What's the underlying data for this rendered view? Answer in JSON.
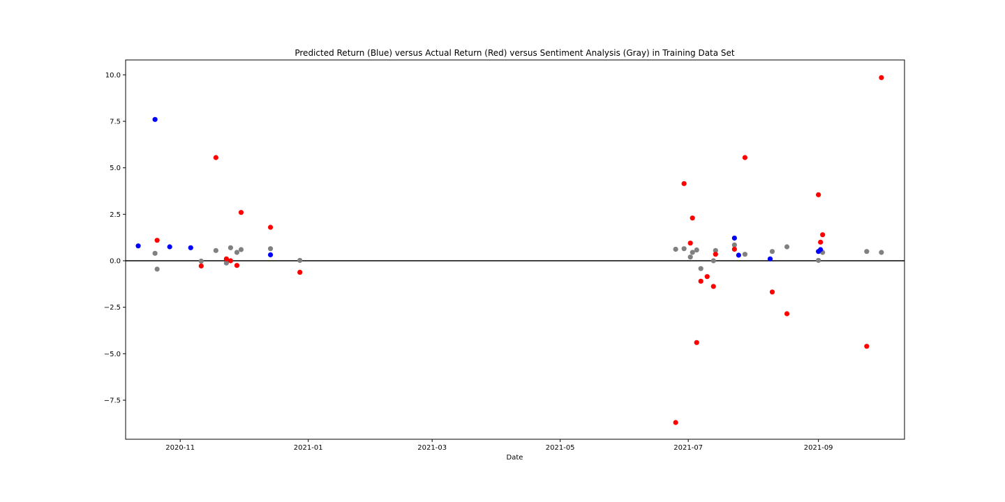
{
  "chart_data": {
    "type": "scatter",
    "title": "Predicted Return (Blue) versus Actual Return (Red) versus Sentiment Analysis (Gray) in Training Data Set",
    "xlabel": "Date",
    "ylabel": "",
    "xlim": [
      "2020-10-06",
      "2021-10-12"
    ],
    "ylim": [
      -9.6,
      10.8
    ],
    "x_ticks": [
      "2020-11",
      "2021-01",
      "2021-03",
      "2021-05",
      "2021-07",
      "2021-09"
    ],
    "x_tick_dates": [
      "2020-11-01",
      "2021-01-01",
      "2021-03-01",
      "2021-05-01",
      "2021-07-01",
      "2021-09-01"
    ],
    "y_ticks": [
      10.0,
      7.5,
      5.0,
      2.5,
      0.0,
      -2.5,
      -5.0,
      -7.5
    ],
    "y_tick_labels": [
      "10.0",
      "7.5",
      "5.0",
      "2.5",
      "0.0",
      "−2.5",
      "−5.0",
      "−7.5"
    ],
    "reference_line": 0,
    "grid": false,
    "legend": "none",
    "colors": {
      "predicted": "#0000ff",
      "actual": "#ff0000",
      "sentiment": "#808080",
      "axes": "#000000"
    },
    "series": [
      {
        "color": "#808080",
        "points": [
          {
            "x": "2020-10-20",
            "y": 0.4
          },
          {
            "x": "2020-10-21",
            "y": -0.45
          },
          {
            "x": "2020-11-11",
            "y": -0.02
          },
          {
            "x": "2020-11-18",
            "y": 0.55
          },
          {
            "x": "2020-11-23",
            "y": -0.12
          },
          {
            "x": "2020-11-25",
            "y": 0.7
          },
          {
            "x": "2020-11-28",
            "y": 0.45
          },
          {
            "x": "2020-11-30",
            "y": 0.6
          },
          {
            "x": "2020-12-14",
            "y": 0.65
          },
          {
            "x": "2020-12-28",
            "y": 0.02
          },
          {
            "x": "2021-06-25",
            "y": 0.62
          },
          {
            "x": "2021-06-29",
            "y": 0.65
          },
          {
            "x": "2021-07-02",
            "y": 0.2
          },
          {
            "x": "2021-07-03",
            "y": 0.45
          },
          {
            "x": "2021-07-05",
            "y": 0.58
          },
          {
            "x": "2021-07-07",
            "y": -0.42
          },
          {
            "x": "2021-07-13",
            "y": 0.0
          },
          {
            "x": "2021-07-14",
            "y": 0.55
          },
          {
            "x": "2021-07-23",
            "y": 0.85
          },
          {
            "x": "2021-07-28",
            "y": 0.35
          },
          {
            "x": "2021-08-10",
            "y": 0.5
          },
          {
            "x": "2021-08-17",
            "y": 0.75
          },
          {
            "x": "2021-09-01",
            "y": 0.02
          },
          {
            "x": "2021-09-03",
            "y": 0.45
          },
          {
            "x": "2021-09-24",
            "y": 0.5
          },
          {
            "x": "2021-10-01",
            "y": 0.45
          }
        ]
      },
      {
        "color": "#ff0000",
        "points": [
          {
            "x": "2020-10-21",
            "y": 1.1
          },
          {
            "x": "2020-11-11",
            "y": -0.28
          },
          {
            "x": "2020-11-18",
            "y": 5.55
          },
          {
            "x": "2020-11-23",
            "y": 0.1
          },
          {
            "x": "2020-11-25",
            "y": 0.0
          },
          {
            "x": "2020-11-28",
            "y": -0.25
          },
          {
            "x": "2020-11-30",
            "y": 2.6
          },
          {
            "x": "2020-12-14",
            "y": 1.8
          },
          {
            "x": "2020-12-28",
            "y": -0.62
          },
          {
            "x": "2021-06-25",
            "y": -8.7
          },
          {
            "x": "2021-06-29",
            "y": 4.15
          },
          {
            "x": "2021-07-02",
            "y": 0.95
          },
          {
            "x": "2021-07-03",
            "y": 2.3
          },
          {
            "x": "2021-07-05",
            "y": -4.4
          },
          {
            "x": "2021-07-07",
            "y": -1.1
          },
          {
            "x": "2021-07-10",
            "y": -0.85
          },
          {
            "x": "2021-07-13",
            "y": -1.38
          },
          {
            "x": "2021-07-14",
            "y": 0.35
          },
          {
            "x": "2021-07-23",
            "y": 0.62
          },
          {
            "x": "2021-07-28",
            "y": 5.55
          },
          {
            "x": "2021-08-10",
            "y": -1.68
          },
          {
            "x": "2021-08-17",
            "y": -2.85
          },
          {
            "x": "2021-09-01",
            "y": 3.55
          },
          {
            "x": "2021-09-02",
            "y": 1.0
          },
          {
            "x": "2021-09-03",
            "y": 1.4
          },
          {
            "x": "2021-09-24",
            "y": -4.6
          },
          {
            "x": "2021-10-01",
            "y": 9.85
          }
        ]
      },
      {
        "color": "#0000ff",
        "points": [
          {
            "x": "2020-10-12",
            "y": 0.8
          },
          {
            "x": "2020-10-20",
            "y": 7.6
          },
          {
            "x": "2020-10-27",
            "y": 0.75
          },
          {
            "x": "2020-11-06",
            "y": 0.7
          },
          {
            "x": "2020-12-14",
            "y": 0.32
          },
          {
            "x": "2021-07-23",
            "y": 1.22
          },
          {
            "x": "2021-07-25",
            "y": 0.3
          },
          {
            "x": "2021-08-09",
            "y": 0.1
          },
          {
            "x": "2021-09-01",
            "y": 0.5
          },
          {
            "x": "2021-09-02",
            "y": 0.6
          }
        ]
      }
    ]
  }
}
